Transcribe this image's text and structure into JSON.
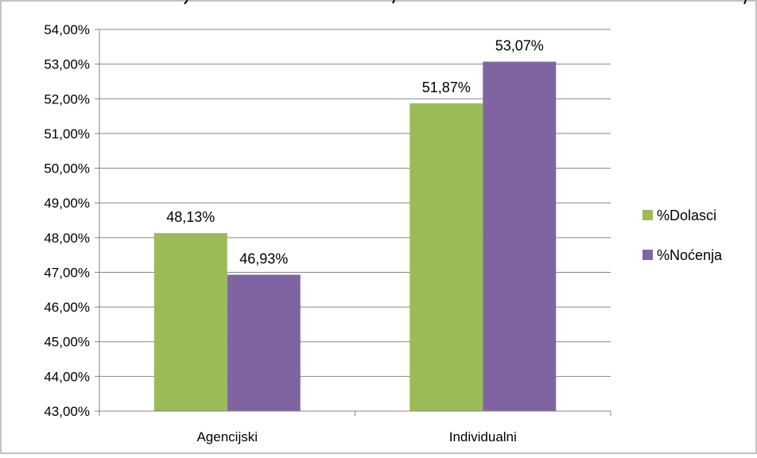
{
  "chart_data": {
    "type": "bar",
    "title": "",
    "xlabel": "",
    "ylabel": "",
    "categories": [
      "Agencijski",
      "Individualni"
    ],
    "series": [
      {
        "name": "%Dolasci",
        "values": [
          48.13,
          51.87
        ],
        "color": "#9BBB59"
      },
      {
        "name": "%Noćenja",
        "values": [
          46.93,
          53.07
        ],
        "color": "#8064A2"
      }
    ],
    "data_labels": [
      [
        "48,13%",
        "51,87%"
      ],
      [
        "46,93%",
        "53,07%"
      ]
    ],
    "ylim": [
      43,
      54
    ],
    "yticks": [
      43,
      44,
      45,
      46,
      47,
      48,
      49,
      50,
      51,
      52,
      53,
      54
    ],
    "ytick_labels": [
      "43,00%",
      "44,00%",
      "45,00%",
      "46,00%",
      "47,00%",
      "48,00%",
      "49,00%",
      "50,00%",
      "51,00%",
      "52,00%",
      "53,00%",
      "54,00%"
    ],
    "grid": true,
    "legend_position": "right",
    "gridline_color": "#868686",
    "axis_color": "#868686"
  }
}
